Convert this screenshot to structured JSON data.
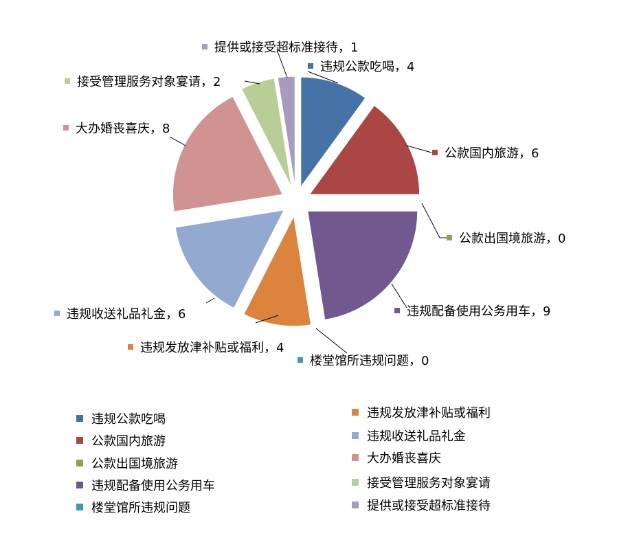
{
  "chart_data": {
    "type": "pie",
    "title": "",
    "start_angle": "12 o'clock, clockwise",
    "exploded": true,
    "slices": [
      {
        "label": "违规公款吃喝",
        "value": 4,
        "color": "#4572A7"
      },
      {
        "label": "公款国内旅游",
        "value": 6,
        "color": "#AA4643"
      },
      {
        "label": "公款出国境旅游",
        "value": 0,
        "color": "#89A54E"
      },
      {
        "label": "违规配备使用公务用车",
        "value": 9,
        "color": "#71588F"
      },
      {
        "label": "楼堂馆所违规问题",
        "value": 0,
        "color": "#4198AF"
      },
      {
        "label": "违规发放津补贴或福利",
        "value": 4,
        "color": "#DB843D"
      },
      {
        "label": "违规收送礼品礼金",
        "value": 6,
        "color": "#93A9CF"
      },
      {
        "label": "大办婚丧喜庆",
        "value": 8,
        "color": "#D19392"
      },
      {
        "label": "接受管理服务对象宴请",
        "value": 2,
        "color": "#B9CD96"
      },
      {
        "label": "提供或接受超标准接待",
        "value": 1,
        "color": "#A99BBD"
      }
    ],
    "data_label_format": "{label}，{value}",
    "legend": {
      "placement": "bottom",
      "columns": 2
    }
  }
}
